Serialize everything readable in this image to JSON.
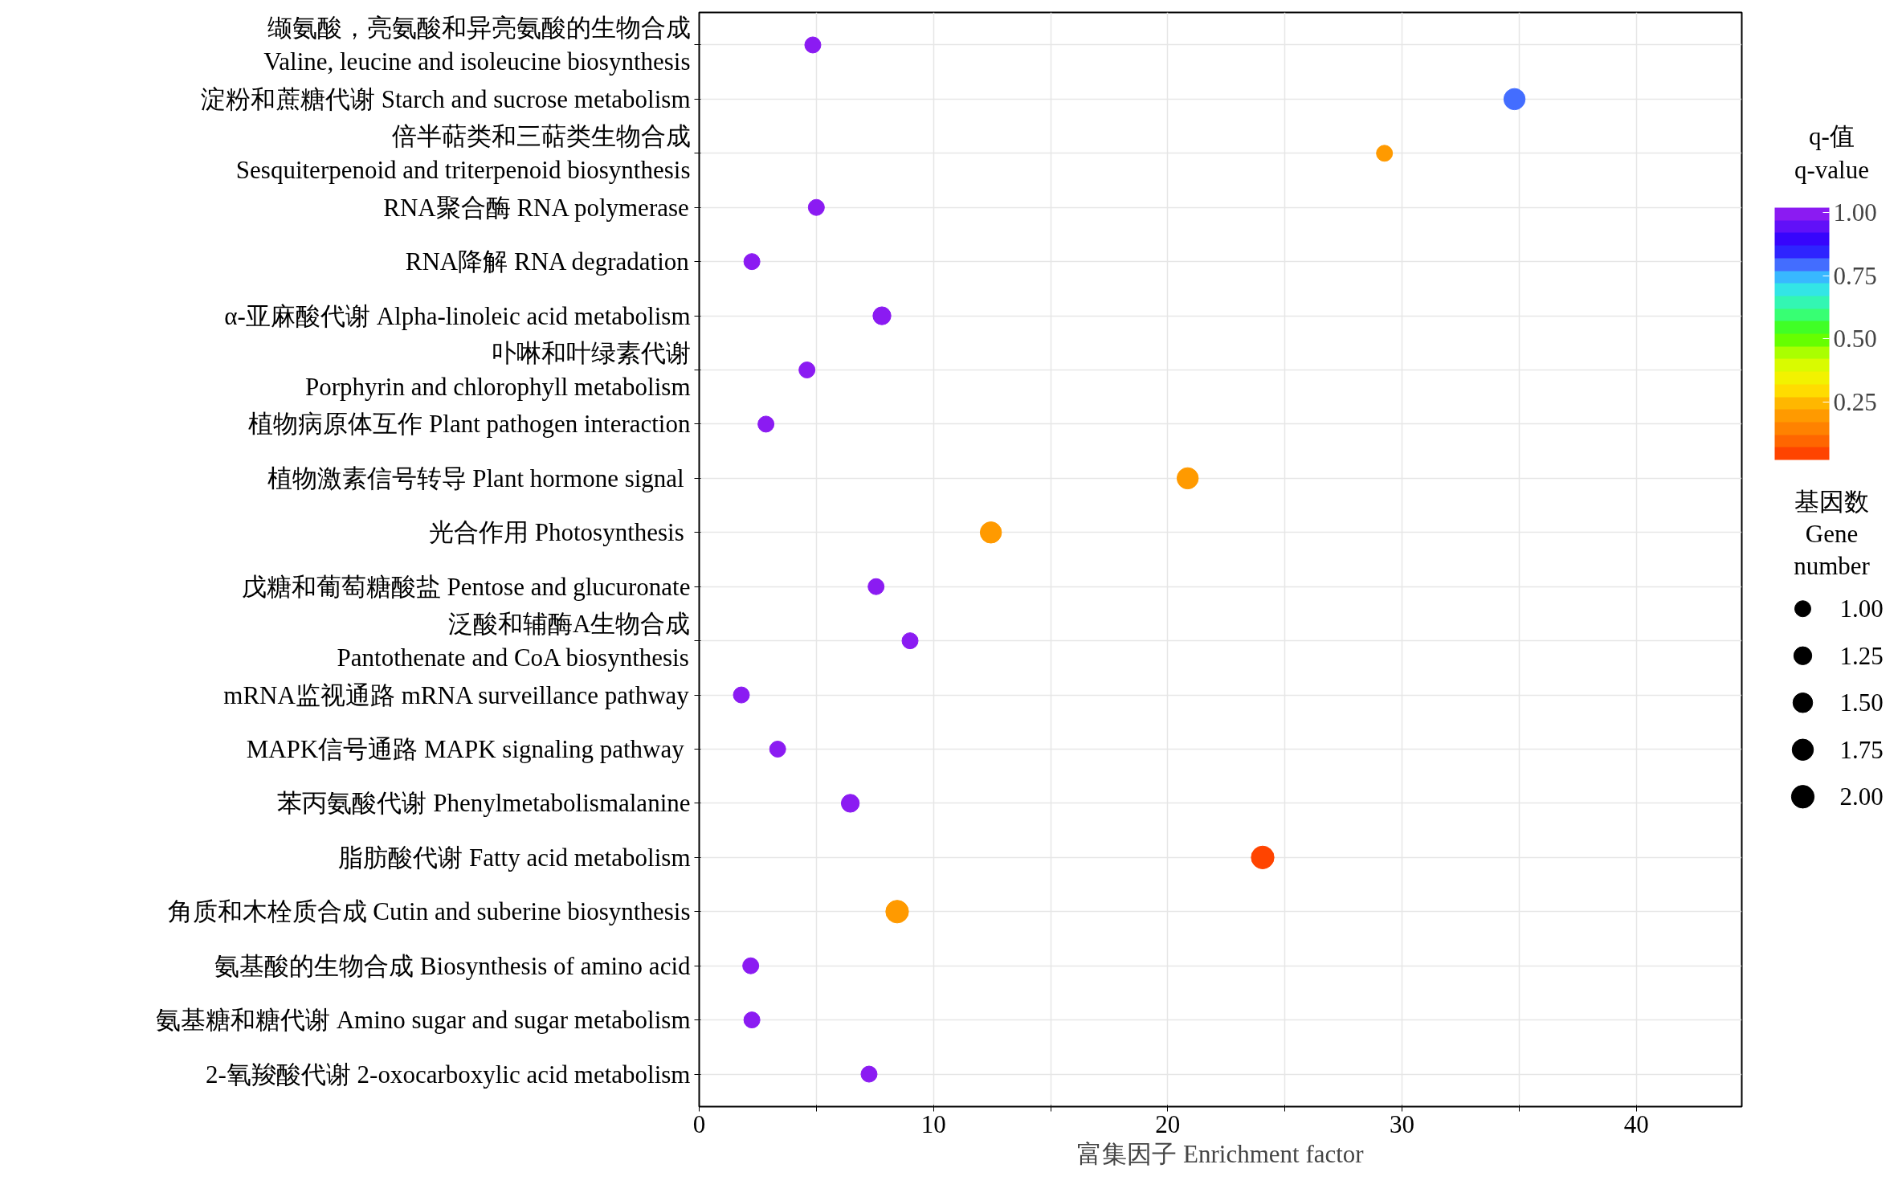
{
  "chart_data": {
    "type": "bubble",
    "orientation": "horizontal",
    "xlabel": "富集因子 Enrichment factor",
    "clabel": "q-值\nq-value",
    "legend_title": "基因数\nGene\nnumber",
    "categories": [
      "缬氨酸，亮氨酸和异亮氨酸的生物合成\nValine, leucine and isoleucine biosynthesis",
      "淀粉和蔗糖代谢 Starch and sucrose metabolism",
      "倍半萜类和三萜类生物合成\nSesquiterpenoid and triterpenoid biosynthesis",
      "RNA聚合酶 RNA polymerase",
      "RNA降解 RNA degradation",
      "α-亚麻酸代谢 Alpha-linoleic acid metabolism",
      "卟啉和叶绿素代谢\nPorphyrin and chlorophyll metabolism",
      "植物病原体互作 Plant pathogen interaction",
      "植物激素信号转导 Plant hormone signal ",
      "光合作用  Photosynthesis",
      "戊糖和葡萄糖酸盐 Pentose and glucuronate",
      "泛酸和辅酶A生物合成\nPantothenate and CoA biosynthesis",
      "mRNA监视通路 mRNA surveillance pathway",
      "MAPK信号通路 MAPK signaling pathway ",
      "苯丙氨酸代谢 Phenylmetabolismalanine",
      "脂肪酸代谢 Fatty acid metabolism",
      "角质和木栓质合成 Cutin and suberine biosynthesis",
      "氨基酸的生物合成 Biosynthesis of amino acid",
      "氨基糖和糖代谢 Amino sugar and sugar metabolism",
      "2-氧羧酸代谢 2-oxocarboxylic acid metabolism"
    ],
    "values": [
      4.85,
      34.8,
      29.25,
      5.0,
      2.25,
      7.8,
      4.6,
      2.85,
      20.85,
      12.45,
      7.55,
      9.0,
      1.8,
      3.35,
      6.45,
      24.05,
      8.45,
      2.2,
      2.25,
      7.25
    ],
    "sizes": [
      1,
      1.75,
      1,
      1,
      1,
      1.25,
      1,
      1,
      1.75,
      1.75,
      1,
      1,
      1,
      1,
      1.25,
      2,
      2,
      1,
      1,
      1
    ],
    "cvalues": [
      0.98,
      0.78,
      0.2,
      0.98,
      0.98,
      0.98,
      0.98,
      0.98,
      0.2,
      0.2,
      0.98,
      0.98,
      0.98,
      0.98,
      0.98,
      0.04,
      0.2,
      0.98,
      0.98,
      0.98
    ],
    "size_legend": [
      {
        "value": 1,
        "label": "1.00"
      },
      {
        "value": 1.25,
        "label": "1.25"
      },
      {
        "value": 1.5,
        "label": "1.50"
      },
      {
        "value": 1.75,
        "label": "1.75"
      },
      {
        "value": 2,
        "label": "2.00"
      }
    ],
    "xlim": [
      0,
      44.5
    ],
    "xticks": [
      0,
      {
        "value": 5,
        "label": null
      },
      10,
      {
        "value": 15,
        "label": null
      },
      20,
      {
        "value": 25,
        "label": null
      },
      30,
      {
        "value": 35,
        "label": null
      },
      40
    ],
    "clim": [
      0.02,
      1.02
    ],
    "cticks": [
      {
        "value": 0.25,
        "label": "0.25"
      },
      {
        "value": 0.5,
        "label": "0.50"
      },
      {
        "value": 0.75,
        "label": "0.75"
      },
      {
        "value": 1.0,
        "label": "1.00"
      }
    ],
    "grid": true,
    "marker": "circle"
  }
}
